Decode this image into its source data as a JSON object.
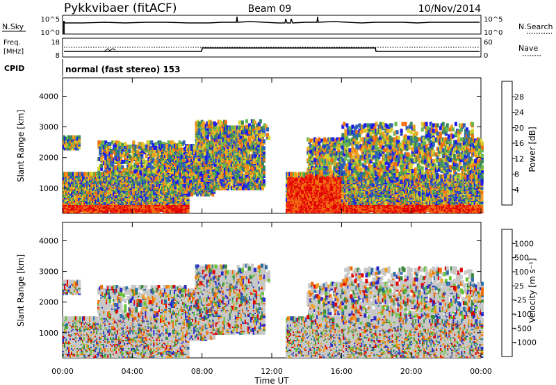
{
  "header": {
    "station": "Pykkvibaer (fitACF)",
    "beam": "Beam 09",
    "date": "10/Nov/2014"
  },
  "nsky_panel": {
    "left_label": "N.Sky",
    "left_ticks": [
      "10^5",
      "10^0"
    ],
    "right_label": "N.Search",
    "right_ticks": [
      "10^5",
      "10^0"
    ]
  },
  "freq_panel": {
    "left_label_1": "Freq.",
    "left_label_2": "[MHz]",
    "left_ticks": [
      "18",
      "8"
    ],
    "right_label": "Nave",
    "right_ticks": [
      "60",
      "0"
    ]
  },
  "cpid": {
    "label": "CPID",
    "value": "normal (fast stereo) 153"
  },
  "xaxis": {
    "title": "Time UT",
    "ticks": [
      "00:00",
      "04:00",
      "08:00",
      "12:00",
      "16:00",
      "20:00",
      "00:00"
    ]
  },
  "power_panel": {
    "ylabel": "Slant Range [km]",
    "yticks": [
      "4000",
      "3000",
      "2000",
      "1000"
    ],
    "colorbar_title": "Power [dB]",
    "colorbar_ticks": [
      "28",
      "24",
      "20",
      "16",
      "12",
      "8",
      "4"
    ]
  },
  "velocity_panel": {
    "ylabel": "Slant Range [km]",
    "yticks": [
      "4000",
      "3000",
      "2000",
      "1000"
    ],
    "colorbar_title": "Velocity [m s⁻¹]",
    "colorbar_ticks": [
      "1000",
      "500",
      "100",
      "25",
      "-25",
      "-100",
      "-500",
      "-1000"
    ]
  },
  "chart_data": {
    "type": "heatmap",
    "x_range_hours": [
      0,
      24
    ],
    "y_range_km": [
      180,
      4600
    ],
    "power_colors": [
      "#1a1aee",
      "#2f5fb8",
      "#3c8a5a",
      "#68b850",
      "#d8d030",
      "#f0a020",
      "#f07010",
      "#ee2a10",
      "#e00000"
    ],
    "velocity_colors": [
      "#2a2ac8",
      "#2f6fa8",
      "#3a8a3a",
      "#66c33a",
      "#c8c8c8",
      "#c8c8c8",
      "#f0a020",
      "#f06a00",
      "#e00000"
    ]
  }
}
